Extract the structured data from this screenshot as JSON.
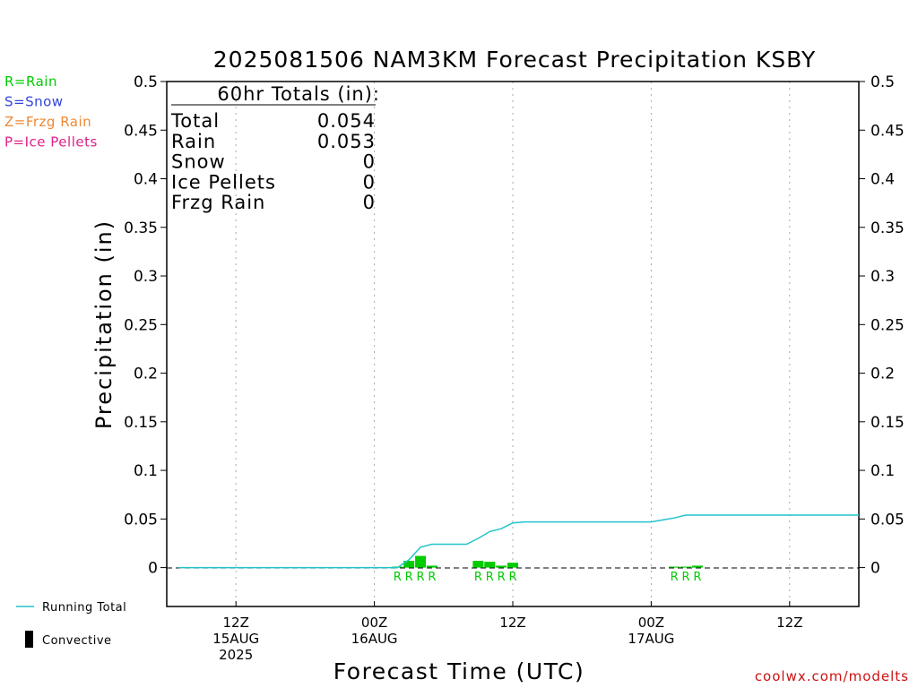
{
  "title": "2025081506 NAM3KM Forecast Precipitation KSBY",
  "watermark": "coolwx.com/modelts",
  "type_legend": [
    {
      "label": "R=Rain",
      "color": "#00cc00"
    },
    {
      "label": "S=Snow",
      "color": "#3344dd"
    },
    {
      "label": "Z=Frzg Rain",
      "color": "#ee8833"
    },
    {
      "label": "P=Ice Pellets",
      "color": "#dd2288"
    }
  ],
  "totals": {
    "header": "60hr Totals (in):",
    "rows": [
      {
        "label": "Total",
        "value": "0.054"
      },
      {
        "label": "Rain",
        "value": "0.053"
      },
      {
        "label": "Snow",
        "value": "0"
      },
      {
        "label": "Ice Pellets",
        "value": "0"
      },
      {
        "label": "Frzg Rain",
        "value": "0"
      }
    ]
  },
  "bottom_legend": {
    "running_total": "Running Total",
    "convective": "Convective"
  },
  "colors": {
    "running_total": "#22c4cc",
    "rain_bar": "#00cc00",
    "grid": "#aaaaaa"
  },
  "chart_data": {
    "type": "bar",
    "title": "2025081506 NAM3KM Forecast Precipitation KSBY",
    "xlabel": "Forecast Time (UTC)",
    "ylabel": "Precipitation (in)",
    "ylim": [
      -0.04,
      0.5
    ],
    "xlim_hours": [
      0,
      60
    ],
    "y_ticks": [
      "0",
      "0.05",
      "0.1",
      "0.15",
      "0.2",
      "0.25",
      "0.3",
      "0.35",
      "0.4",
      "0.45",
      "0.5"
    ],
    "x_ticks": [
      {
        "hour": 6,
        "lines": [
          "12Z",
          "15AUG",
          "2025"
        ]
      },
      {
        "hour": 18,
        "lines": [
          "00Z",
          "16AUG"
        ]
      },
      {
        "hour": 30,
        "lines": [
          "12Z"
        ]
      },
      {
        "hour": 42,
        "lines": [
          "00Z",
          "17AUG"
        ]
      },
      {
        "hour": 54,
        "lines": [
          "12Z"
        ]
      }
    ],
    "grid": "vertical-dotted",
    "bars": [
      {
        "hour": 20,
        "value": 0.001
      },
      {
        "hour": 21,
        "value": 0.007
      },
      {
        "hour": 22,
        "value": 0.012
      },
      {
        "hour": 23,
        "value": 0.002
      },
      {
        "hour": 27,
        "value": 0.007
      },
      {
        "hour": 28,
        "value": 0.006
      },
      {
        "hour": 29,
        "value": 0.002
      },
      {
        "hour": 30,
        "value": 0.005
      },
      {
        "hour": 44,
        "value": 0.001
      },
      {
        "hour": 45,
        "value": 0.001
      },
      {
        "hour": 46,
        "value": 0.002
      }
    ],
    "ptype_marks": [
      {
        "hour": 20,
        "label": "R"
      },
      {
        "hour": 21,
        "label": "R"
      },
      {
        "hour": 22,
        "label": "R"
      },
      {
        "hour": 23,
        "label": "R"
      },
      {
        "hour": 27,
        "label": "R"
      },
      {
        "hour": 28,
        "label": "R"
      },
      {
        "hour": 29,
        "label": "R"
      },
      {
        "hour": 30,
        "label": "R"
      },
      {
        "hour": 44,
        "label": "R"
      },
      {
        "hour": 45,
        "label": "R"
      },
      {
        "hour": 46,
        "label": "R"
      }
    ],
    "running_total": {
      "name": "Running Total",
      "x": [
        1,
        20,
        21,
        22,
        23,
        24,
        25,
        26,
        27,
        28,
        29,
        30,
        31,
        32,
        42,
        43,
        44,
        45,
        46,
        60
      ],
      "y": [
        0,
        0,
        0.008,
        0.021,
        0.024,
        0.024,
        0.024,
        0.024,
        0.03,
        0.037,
        0.04,
        0.046,
        0.047,
        0.047,
        0.047,
        0.049,
        0.051,
        0.054,
        0.054,
        0.054
      ]
    }
  }
}
